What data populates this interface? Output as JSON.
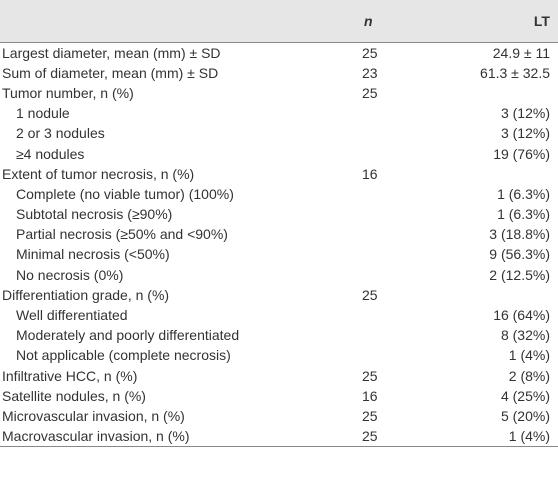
{
  "table": {
    "header": {
      "n": "n",
      "group": "LT"
    },
    "rows": [
      {
        "label": "Largest diameter, mean (mm) ± SD",
        "n": 25,
        "value": "24.9 ± 11"
      },
      {
        "label": "Sum of diameter, mean (mm) ± SD",
        "n": 23,
        "value": "61.3 ± 32.5"
      },
      {
        "label": "Tumor number, n (%)",
        "n": 25,
        "sub": [
          {
            "label": "1 nodule",
            "value": "3 (12%)"
          },
          {
            "label": "2 or 3 nodules",
            "value": "3 (12%)"
          },
          {
            "label": "≥4 nodules",
            "value": "19 (76%)"
          }
        ]
      },
      {
        "label": "Extent of tumor necrosis, n (%)",
        "n": 16,
        "sub": [
          {
            "label": "Complete (no viable tumor) (100%)",
            "value": "1 (6.3%)"
          },
          {
            "label": "Subtotal necrosis (≥90%)",
            "value": "1 (6.3%)"
          },
          {
            "label": "Partial necrosis (≥50% and <90%)",
            "value": "3 (18.8%)"
          },
          {
            "label": "Minimal necrosis (<50%)",
            "value": "9 (56.3%)"
          },
          {
            "label": "No necrosis (0%)",
            "value": "2 (12.5%)"
          }
        ]
      },
      {
        "label": "Differentiation grade, n (%)",
        "n": 25,
        "sub": [
          {
            "label": "Well differentiated",
            "value": "16 (64%)"
          },
          {
            "label": "Moderately and poorly differentiated",
            "value": "8 (32%)"
          },
          {
            "label": "Not applicable (complete necrosis)",
            "value": "1 (4%)"
          }
        ]
      },
      {
        "label": "Infiltrative HCC, n (%)",
        "n": 25,
        "value": "2 (8%)"
      },
      {
        "label": "Satellite nodules, n (%)",
        "n": 16,
        "value": "4 (25%)"
      },
      {
        "label": "Microvascular invasion, n (%)",
        "n": 25,
        "value": "5 (20%)"
      },
      {
        "label": "Macrovascular invasion, n (%)",
        "n": 25,
        "value": "1 (4%)"
      }
    ]
  }
}
